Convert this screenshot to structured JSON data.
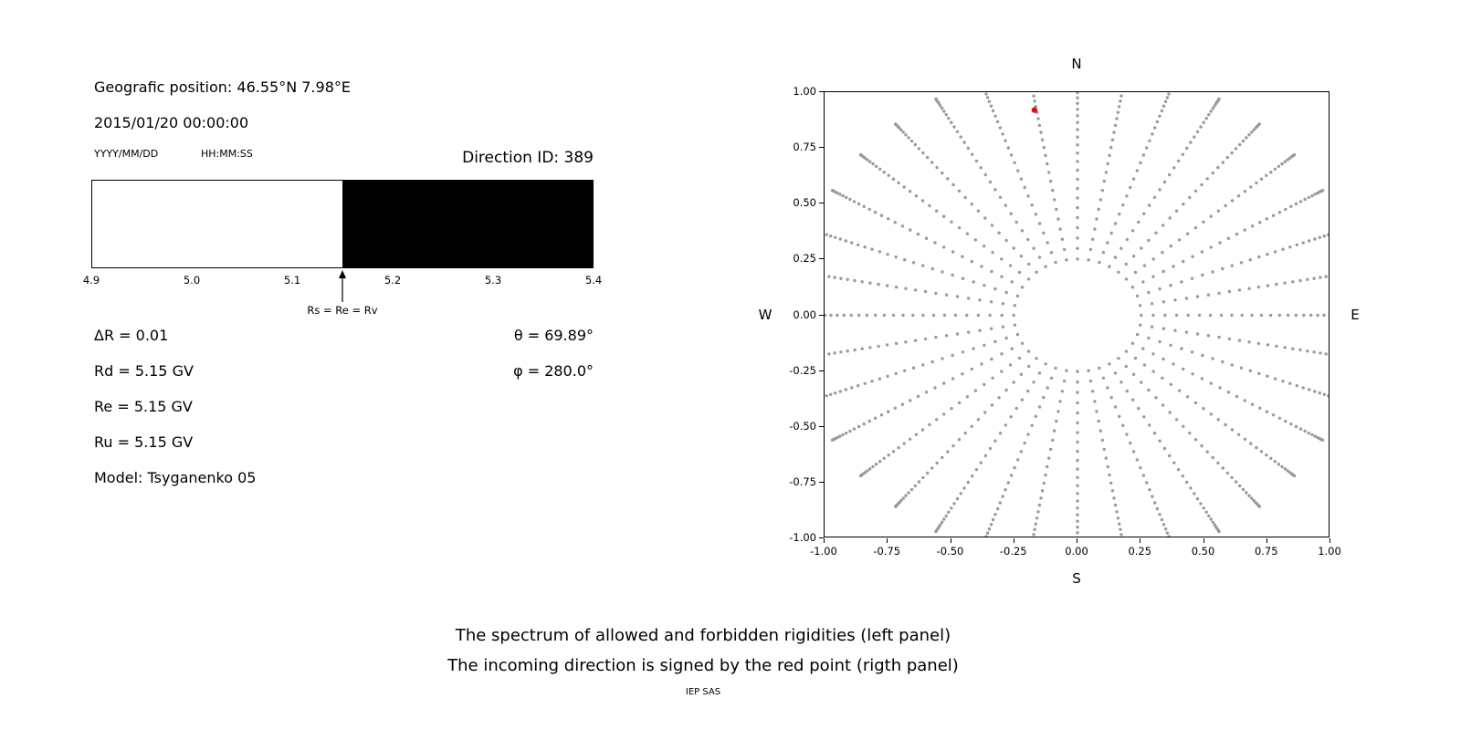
{
  "info": {
    "position_label": "Geografic position: 46.55°N 7.98°E",
    "datetime": "2015/01/20 00:00:00",
    "date_format": "YYYY/MM/DD",
    "time_format": "HH:MM:SS",
    "direction_id": "Direction ID: 389",
    "delta_r": "ΔR = 0.01",
    "theta": "θ = 69.89°",
    "rd": "Rd = 5.15 GV",
    "phi": "φ = 280.0°",
    "re": "Re = 5.15 GV",
    "ru": "Ru = 5.15 GV",
    "model": "Model: Tsyganenko 05"
  },
  "caption": {
    "line1": "The spectrum of allowed and forbidden rigidities (left panel)",
    "line2": "The incoming direction is signed by the red point (rigth panel)",
    "credit": "IEP SAS"
  },
  "chart_data": [
    {
      "id": "rigidity-spectrum",
      "type": "bar",
      "title": "",
      "description": "Horizontal rigidity spectrum: allowed rigidities shown white, forbidden rigidities shown black",
      "x_min": 4.9,
      "x_max": 5.4,
      "boundary": 5.15,
      "segments": [
        {
          "from": 4.9,
          "to": 5.15,
          "state": "allowed",
          "color": "#ffffff"
        },
        {
          "from": 5.15,
          "to": 5.4,
          "state": "forbidden",
          "color": "#000000"
        }
      ],
      "x_ticks": [
        "4.9",
        "5.0",
        "5.1",
        "5.2",
        "5.3",
        "5.4"
      ],
      "arrow_x": 5.15,
      "arrow_label": "Rs = Re = Rv"
    },
    {
      "id": "direction-map",
      "type": "scatter",
      "description": "Incoming direction map; gray dots are the grid of computed directions, red point marks the incoming direction (theta = 69.89 deg, phi = 280.0 deg)",
      "xlim": [
        -1.0,
        1.0
      ],
      "ylim": [
        -1.0,
        1.0
      ],
      "x_ticks": [
        "-1.00",
        "-0.75",
        "-0.50",
        "-0.25",
        "0.00",
        "0.25",
        "0.50",
        "0.75",
        "1.00"
      ],
      "y_ticks": [
        "1.00",
        "0.75",
        "0.50",
        "0.25",
        "0.00",
        "-0.25",
        "-0.50",
        "-0.75",
        "-1.00"
      ],
      "compass": {
        "top": "N",
        "bottom": "S",
        "left": "W",
        "right": "E"
      },
      "grid_points": {
        "azimuth_start_deg": 0,
        "azimuth_step_deg": 10,
        "azimuth_count": 36,
        "zenith_min_deg": 13,
        "zenith_max_deg": 90,
        "zenith_step_deg": 2.5,
        "radius_scale": 1.12,
        "radius_rule": "r = radius_scale * sin(zenith), clipped to axes limits",
        "color": "#9a9a9a",
        "marker_size": 1.7
      },
      "red_point": {
        "x": -0.17,
        "y": 0.92,
        "color": "#e80b0b",
        "marker_size": 3.2
      }
    }
  ]
}
